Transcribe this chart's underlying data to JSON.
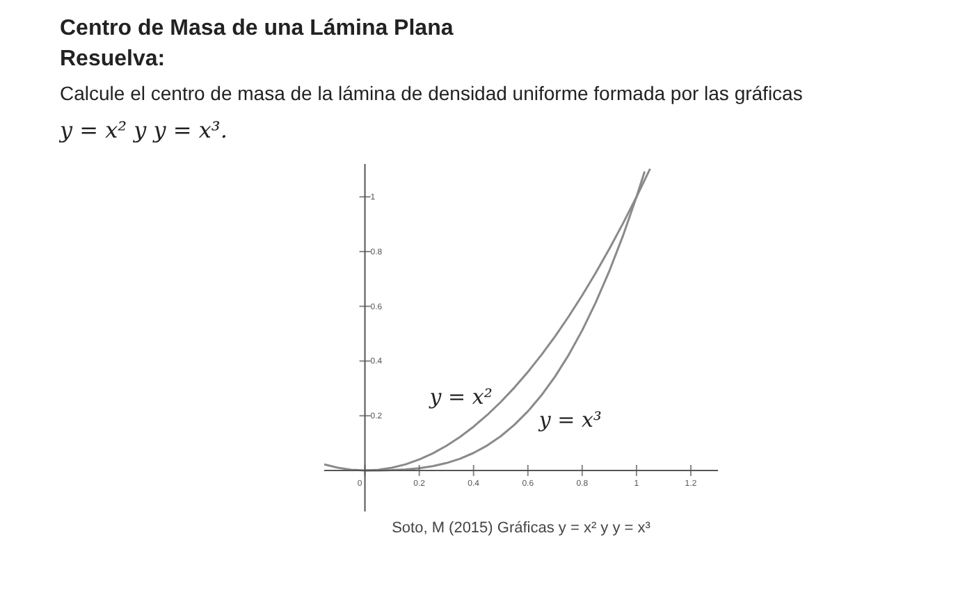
{
  "chart_data": {
    "type": "line",
    "title": "Centro de Masa de una Lámina Plana",
    "subtitle": "Resuelva:",
    "annotations": [
      "Calcule el centro de masa de la lámina de densidad uniforme formada por las gráficas",
      "y = x² y y = x³.",
      "Soto, M (2015) Gráficas y = x² y y = x³"
    ],
    "series": [
      {
        "name": "y = x²",
        "color": "#8a8a8a",
        "x": [
          -0.15,
          -0.1,
          -0.05,
          0,
          0.05,
          0.1,
          0.15,
          0.2,
          0.25,
          0.3,
          0.35,
          0.4,
          0.45,
          0.5,
          0.55,
          0.6,
          0.65,
          0.7,
          0.75,
          0.8,
          0.85,
          0.9,
          0.95,
          1,
          1.05
        ],
        "values": [
          0.0225,
          0.01,
          0.0025,
          0,
          0.0025,
          0.01,
          0.0225,
          0.04,
          0.0625,
          0.09,
          0.1225,
          0.16,
          0.2025,
          0.25,
          0.3025,
          0.36,
          0.4225,
          0.49,
          0.5625,
          0.64,
          0.7225,
          0.81,
          0.9025,
          1,
          1.1025
        ]
      },
      {
        "name": "y = x³",
        "color": "#8a8a8a",
        "x": [
          0,
          0.05,
          0.1,
          0.15,
          0.2,
          0.25,
          0.3,
          0.35,
          0.4,
          0.45,
          0.5,
          0.55,
          0.6,
          0.65,
          0.7,
          0.75,
          0.8,
          0.85,
          0.9,
          0.95,
          1,
          1.03
        ],
        "values": [
          0,
          0.0001,
          0.001,
          0.0034,
          0.008,
          0.0156,
          0.027,
          0.0429,
          0.064,
          0.0911,
          0.125,
          0.1664,
          0.216,
          0.2746,
          0.343,
          0.4219,
          0.512,
          0.6141,
          0.729,
          0.8574,
          1,
          1.0927
        ]
      }
    ],
    "xlim": [
      -0.15,
      1.3
    ],
    "ylim": [
      -0.15,
      1.12
    ],
    "xticks": [
      0,
      0.2,
      0.4,
      0.6,
      0.8,
      1,
      1.2
    ],
    "yticks": [
      0.2,
      0.4,
      0.6,
      0.8,
      1
    ],
    "grid": false,
    "marker": "none",
    "line_style": "solid"
  }
}
